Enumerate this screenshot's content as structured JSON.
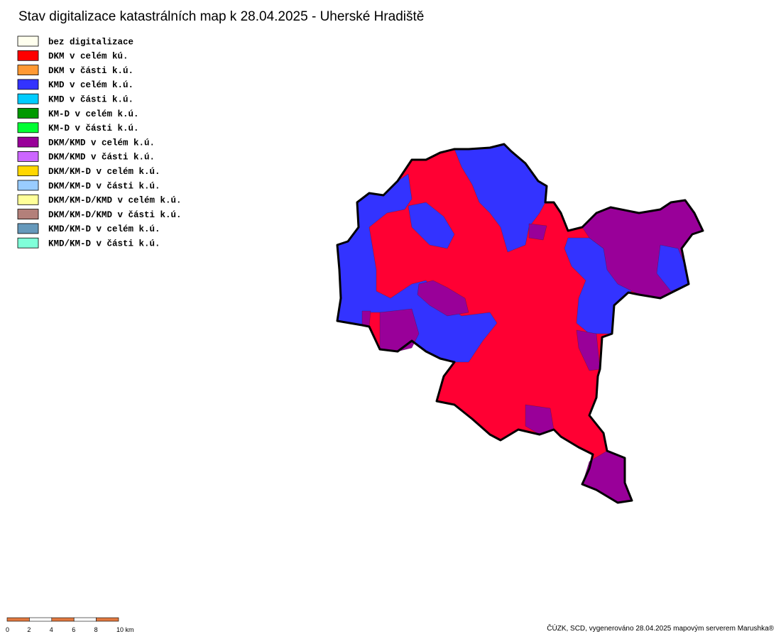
{
  "title": "Stav digitalizace katastrálních map k 28.04.2025 - Uherské Hradiště",
  "legend": [
    {
      "label": "bez digitalizace",
      "color": "#ffffee"
    },
    {
      "label": "DKM v celém kú.",
      "color": "#ff0000"
    },
    {
      "label": "DKM v části k.ú.",
      "color": "#ff9933"
    },
    {
      "label": "KMD v celém k.ú.",
      "color": "#3333ff"
    },
    {
      "label": "KMD v části k.ú.",
      "color": "#00ccff"
    },
    {
      "label": "KM-D v celém k.ú.",
      "color": "#009900"
    },
    {
      "label": "KM-D v části k.ú.",
      "color": "#00ff33"
    },
    {
      "label": "DKM/KMD v celém k.ú.",
      "color": "#990099"
    },
    {
      "label": "DKM/KMD v části k.ú.",
      "color": "#cc66ff"
    },
    {
      "label": "DKM/KM-D v celém k.ú.",
      "color": "#ffd700"
    },
    {
      "label": "DKM/KM-D v části k.ú.",
      "color": "#99ccff"
    },
    {
      "label": "DKM/KM-D/KMD v celém k.ú.",
      "color": "#ffff99"
    },
    {
      "label": "DKM/KM-D/KMD v části k.ú.",
      "color": "#b3807a"
    },
    {
      "label": "KMD/KM-D v celém k.ú.",
      "color": "#6699bb"
    },
    {
      "label": "KMD/KM-D v části k.ú.",
      "color": "#80ffd9"
    }
  ],
  "scale_bar": {
    "labels": [
      "0",
      "2",
      "4",
      "6",
      "8",
      "10 km"
    ]
  },
  "credit": "ČÚZK, SCD, vygenerováno 28.04.2025 mapovým serverem Marushka®"
}
